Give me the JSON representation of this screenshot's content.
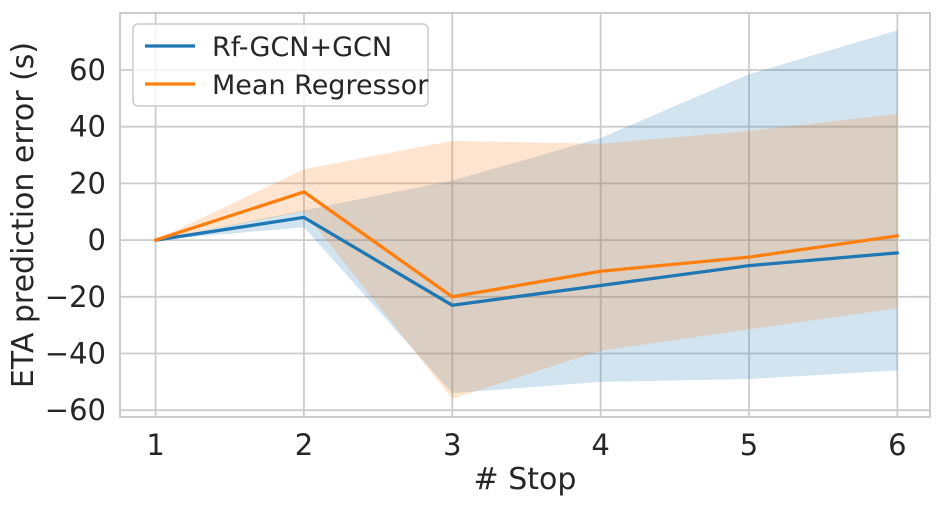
{
  "chart_data": {
    "type": "line",
    "title": "",
    "xlabel": "# Stop",
    "ylabel": "ETA prediction error (s)",
    "x": [
      1,
      2,
      3,
      4,
      5,
      6
    ],
    "series": [
      {
        "name": "Rf-GCN+GCN",
        "color": "#1f77b4",
        "mean": [
          0,
          8,
          -23,
          -16,
          -9,
          -4.5
        ],
        "band_upper": [
          0,
          10.5,
          21,
          36,
          58.5,
          74
        ],
        "band_lower": [
          0,
          4.5,
          -54,
          -50,
          -49,
          -46
        ]
      },
      {
        "name": "Mean Regressor",
        "color": "#ff7f0e",
        "mean": [
          0,
          17,
          -20,
          -11,
          -6,
          1.5
        ],
        "band_upper": [
          0,
          25,
          35,
          34,
          38.5,
          44.5
        ],
        "band_lower": [
          0,
          10,
          -56,
          -39,
          -31.5,
          -24
        ]
      }
    ],
    "band_opacity": 0.2,
    "xlim": [
      0.76,
      6.22
    ],
    "ylim": [
      -62.4,
      80.1
    ],
    "xtick_values": [
      1,
      2,
      3,
      4,
      5,
      6
    ],
    "xtick_labels": [
      "1",
      "2",
      "3",
      "4",
      "5",
      "6"
    ],
    "ytick_values": [
      -60,
      -40,
      -20,
      0,
      20,
      40,
      60
    ],
    "ytick_labels": [
      "−60",
      "−40",
      "−20",
      "0",
      "20",
      "40",
      "60"
    ],
    "grid": true,
    "legend": {
      "position": "upper left"
    },
    "colors": {
      "grid": "#cccccc",
      "spine": "#cccccc",
      "text": "#262626",
      "background": "#ffffff"
    }
  }
}
